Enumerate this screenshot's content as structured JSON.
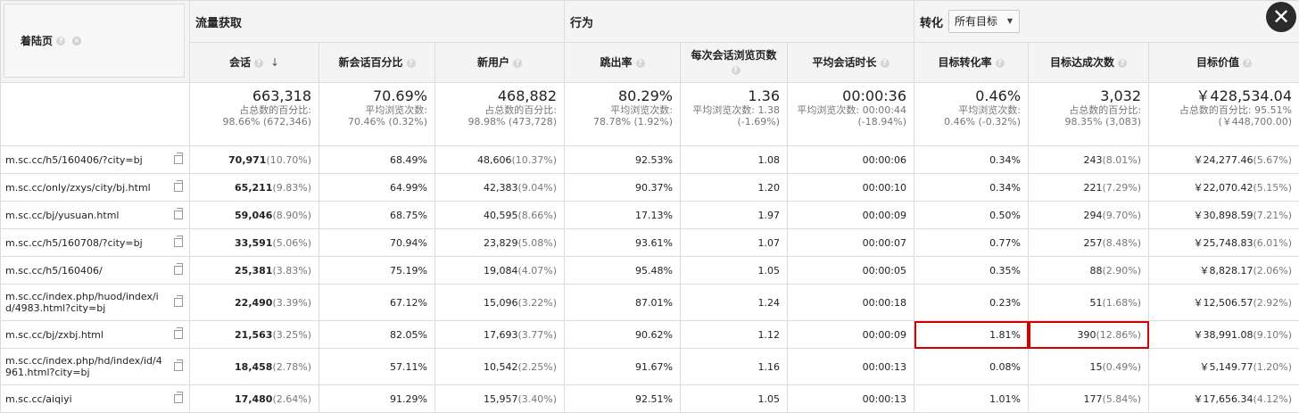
{
  "header": {
    "landing_label": "着陆页",
    "acquisition": "流量获取",
    "behavior": "行为",
    "conversion": "转化",
    "goal_select": "所有目标",
    "columns": {
      "sessions": "会话",
      "new_session_pct": "新会话百分比",
      "new_users": "新用户",
      "bounce": "跳出率",
      "pages_per_session": "每次会话浏览页数",
      "avg_duration": "平均会话时长",
      "goal_conv_rate": "目标转化率",
      "goal_completions": "目标达成次数",
      "goal_value": "目标价值"
    }
  },
  "totals": {
    "sessions": {
      "v": "663,318",
      "s1": "占总数的百分比:",
      "s2": "98.66% (672,346)"
    },
    "new_session_pct": {
      "v": "70.69%",
      "s1": "平均浏览次数:",
      "s2": "70.46% (0.32%)"
    },
    "new_users": {
      "v": "468,882",
      "s1": "占总数的百分比:",
      "s2": "98.98% (473,728)"
    },
    "bounce": {
      "v": "80.29%",
      "s1": "平均浏览次数:",
      "s2": "78.78% (1.92%)"
    },
    "pages_per_session": {
      "v": "1.36",
      "s1": "平均浏览次数: 1.38",
      "s2": "(-1.69%)"
    },
    "avg_duration": {
      "v": "00:00:36",
      "s1": "平均浏览次数: 00:00:44",
      "s2": "(-18.94%)"
    },
    "goal_conv_rate": {
      "v": "0.46%",
      "s1": "平均浏览次数:",
      "s2": "0.46% (-0.32%)"
    },
    "goal_completions": {
      "v": "3,032",
      "s1": "占总数的百分比:",
      "s2": "98.35% (3,083)"
    },
    "goal_value": {
      "v": "￥428,534.04",
      "s1": "占总数的百分比: 95.51%",
      "s2": "(￥448,700.00)"
    }
  },
  "rows": [
    {
      "page": "m.sc.cc/h5/160406/?city=bj",
      "s": "70,971",
      "sp": "(10.70%)",
      "nsp": "68.49%",
      "nu": "48,606",
      "nup": "(10.37%)",
      "br": "92.53%",
      "pps": "1.08",
      "dur": "00:00:06",
      "gcr": "0.34%",
      "gc": "243",
      "gcp": "(8.01%)",
      "gv": "￥24,277.46",
      "gvp": "(5.67%)"
    },
    {
      "page": "m.sc.cc/only/zxys/city/bj.html",
      "s": "65,211",
      "sp": "(9.83%)",
      "nsp": "64.99%",
      "nu": "42,383",
      "nup": "(9.04%)",
      "br": "90.37%",
      "pps": "1.20",
      "dur": "00:00:10",
      "gcr": "0.34%",
      "gc": "221",
      "gcp": "(7.29%)",
      "gv": "￥22,070.42",
      "gvp": "(5.15%)"
    },
    {
      "page": "m.sc.cc/bj/yusuan.html",
      "s": "59,046",
      "sp": "(8.90%)",
      "nsp": "68.75%",
      "nu": "40,595",
      "nup": "(8.66%)",
      "br": "17.13%",
      "pps": "1.97",
      "dur": "00:00:09",
      "gcr": "0.50%",
      "gc": "294",
      "gcp": "(9.70%)",
      "gv": "￥30,898.59",
      "gvp": "(7.21%)"
    },
    {
      "page": "m.sc.cc/h5/160708/?city=bj",
      "s": "33,591",
      "sp": "(5.06%)",
      "nsp": "70.94%",
      "nu": "23,829",
      "nup": "(5.08%)",
      "br": "93.61%",
      "pps": "1.07",
      "dur": "00:00:07",
      "gcr": "0.77%",
      "gc": "257",
      "gcp": "(8.48%)",
      "gv": "￥25,748.83",
      "gvp": "(6.01%)"
    },
    {
      "page": "m.sc.cc/h5/160406/",
      "s": "25,381",
      "sp": "(3.83%)",
      "nsp": "75.19%",
      "nu": "19,084",
      "nup": "(4.07%)",
      "br": "95.48%",
      "pps": "1.05",
      "dur": "00:00:05",
      "gcr": "0.35%",
      "gc": "88",
      "gcp": "(2.90%)",
      "gv": "￥8,828.17",
      "gvp": "(2.06%)"
    },
    {
      "page": "m.sc.cc/index.php/huod/index/id/4983.html?city=bj",
      "s": "22,490",
      "sp": "(3.39%)",
      "nsp": "67.12%",
      "nu": "15,096",
      "nup": "(3.22%)",
      "br": "87.01%",
      "pps": "1.24",
      "dur": "00:00:18",
      "gcr": "0.23%",
      "gc": "51",
      "gcp": "(1.68%)",
      "gv": "￥12,506.57",
      "gvp": "(2.92%)"
    },
    {
      "page": "m.sc.cc/bj/zxbj.html",
      "s": "21,563",
      "sp": "(3.25%)",
      "nsp": "82.05%",
      "nu": "17,693",
      "nup": "(3.77%)",
      "br": "90.62%",
      "pps": "1.12",
      "dur": "00:00:09",
      "gcr": "1.81%",
      "gc": "390",
      "gcp": "(12.86%)",
      "gv": "￥38,991.08",
      "gvp": "(9.10%)"
    },
    {
      "page": "m.sc.cc/index.php/hd/index/id/4961.html?city=bj",
      "s": "18,458",
      "sp": "(2.78%)",
      "nsp": "57.11%",
      "nu": "10,542",
      "nup": "(2.25%)",
      "br": "91.67%",
      "pps": "1.16",
      "dur": "00:00:13",
      "gcr": "0.08%",
      "gc": "15",
      "gcp": "(0.49%)",
      "gv": "￥5,149.77",
      "gvp": "(1.20%)"
    },
    {
      "page": "m.sc.cc/aiqiyi",
      "s": "17,480",
      "sp": "(2.64%)",
      "nsp": "91.29%",
      "nu": "15,957",
      "nup": "(3.40%)",
      "br": "92.51%",
      "pps": "1.05",
      "dur": "00:00:13",
      "gcr": "1.01%",
      "gc": "177",
      "gcp": "(5.84%)",
      "gv": "￥17,656.34",
      "gvp": "(4.12%)"
    }
  ],
  "icons": {
    "help": "question-circle-icon",
    "close": "close-icon",
    "sort": "arrow-down-icon",
    "external": "open-in-new-icon"
  },
  "colors": {
    "highlight": "#d40000",
    "close_bg": "#2b2b2b"
  }
}
